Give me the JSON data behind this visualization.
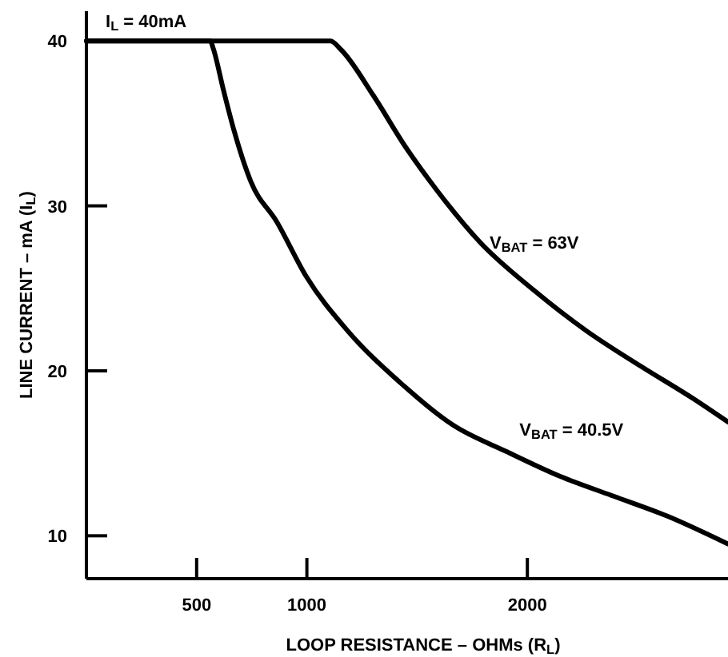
{
  "chart_data": {
    "type": "line",
    "xlabel": "LOOP RESISTANCE – OHMs (R$_{L}$)",
    "ylabel": "LINE CURRENT – mA (I$_{L}$)",
    "annotations": [
      "I$_{L}$ = 40mA"
    ],
    "xlim": [
      0,
      2910
    ],
    "xticks": [
      500,
      1000,
      2000
    ],
    "ylim": [
      7.4,
      41.8
    ],
    "yticks": [
      10,
      20,
      30,
      40
    ],
    "grid": false,
    "line_style": "solid",
    "series": [
      {
        "name": "V$_{BAT}$ = 63V",
        "color": "#000000",
        "x": [
          0,
          1107,
          1156,
          1301,
          1446,
          1592,
          1785,
          2028,
          2270,
          2512,
          2754,
          2910
        ],
        "values": [
          40,
          40,
          39.45,
          36.7,
          33.6,
          30.9,
          27.8,
          24.9,
          22.4,
          20.3,
          18.3,
          16.9
        ]
      },
      {
        "name": "V$_{BAT}$ = 40.5V",
        "color": "#000000",
        "x": [
          0,
          562,
          574,
          622,
          671,
          745,
          865,
          998,
          1180,
          1422,
          1664,
          1906,
          2149,
          2391,
          2633,
          2910
        ],
        "values": [
          40,
          40,
          39.6,
          37.0,
          34.5,
          31.5,
          29.0,
          25.7,
          22.5,
          19.3,
          16.7,
          15.1,
          13.6,
          12.4,
          11.2,
          9.5
        ]
      }
    ]
  }
}
